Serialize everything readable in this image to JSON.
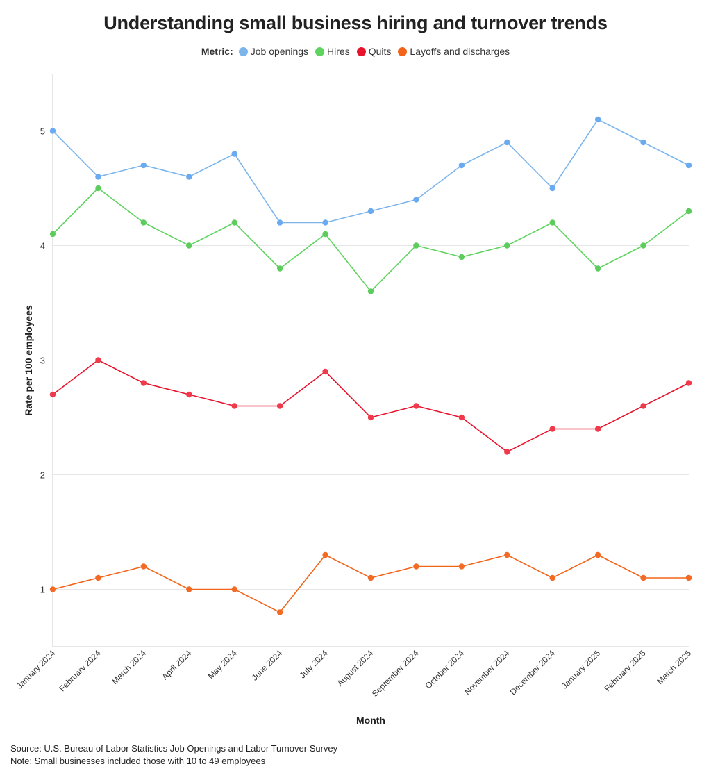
{
  "chart_data": {
    "type": "line",
    "title": "Understanding small business hiring and turnover trends",
    "legend_title": "Metric:",
    "legend_position": "top-center",
    "xlabel": "Month",
    "ylabel": "Rate per 100 employees",
    "categories": [
      "January 2024",
      "February 2024",
      "March 2024",
      "April 2024",
      "May 2024",
      "June 2024",
      "July 2024",
      "August 2024",
      "September 2024",
      "October 2024",
      "November 2024",
      "December 2024",
      "January 2025",
      "February 2025",
      "March 2025"
    ],
    "ylim": [
      0.5,
      5.5
    ],
    "yticks": [
      1,
      2,
      3,
      4,
      5
    ],
    "grid": true,
    "series": [
      {
        "name": "Job openings",
        "color": "#7cb5ec",
        "marker_color": "#6aaaf0",
        "values": [
          5.0,
          4.6,
          4.7,
          4.6,
          4.8,
          4.2,
          4.2,
          4.3,
          4.4,
          4.7,
          4.9,
          4.5,
          5.1,
          4.9,
          4.7
        ]
      },
      {
        "name": "Hires",
        "color": "#5fd35f",
        "marker_color": "#5ccc5c",
        "values": [
          4.1,
          4.5,
          4.2,
          4.0,
          4.2,
          3.8,
          4.1,
          3.6,
          4.0,
          3.9,
          4.0,
          4.2,
          3.8,
          4.0,
          4.3
        ]
      },
      {
        "name": "Quits",
        "color": "#e8132d",
        "marker_color": "#f0394a",
        "values": [
          2.7,
          3.0,
          2.8,
          2.7,
          2.6,
          2.6,
          2.9,
          2.5,
          2.6,
          2.5,
          2.2,
          2.4,
          2.4,
          2.6,
          2.8
        ]
      },
      {
        "name": "Layoffs and discharges",
        "color": "#f26419",
        "marker_color": "#f26a24",
        "values": [
          1.0,
          1.1,
          1.2,
          1.0,
          1.0,
          0.8,
          1.3,
          1.1,
          1.2,
          1.2,
          1.3,
          1.1,
          1.3,
          1.1,
          1.1
        ]
      }
    ]
  },
  "footer": {
    "source": "Source: U.S. Bureau of Labor Statistics Job Openings and Labor Turnover Survey",
    "note": "Note: Small businesses included those with 10 to 49 employees"
  }
}
